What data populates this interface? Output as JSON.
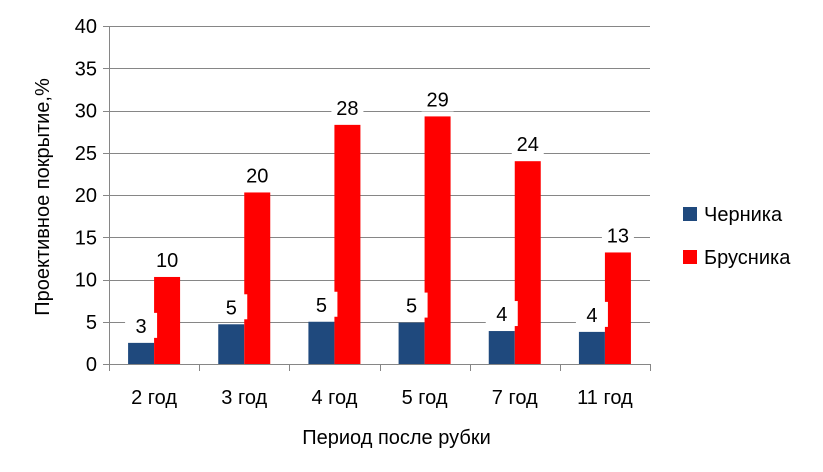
{
  "chart_data": {
    "type": "bar",
    "title": "",
    "xlabel": "Период после рубки",
    "ylabel": "Проективное покрытие,%",
    "ylim": [
      0,
      40
    ],
    "yticks": [
      "0",
      "5",
      "10",
      "15",
      "20",
      "25",
      "30",
      "35",
      "40"
    ],
    "categories": [
      "2 год",
      "3 год",
      "4 год",
      "5 год",
      "7 год",
      "11 год"
    ],
    "grid": true,
    "legend_position": "right",
    "series": [
      {
        "name": "Черника",
        "color": "#1F497D",
        "values": [
          2.5,
          4.7,
          5.0,
          4.9,
          3.9,
          3.8
        ],
        "labels": [
          "3",
          "5",
          "5",
          "5",
          "4",
          "4"
        ]
      },
      {
        "name": "Брусника",
        "color": "#FF0000",
        "values": [
          10.3,
          20.3,
          28.3,
          29.3,
          24.0,
          13.2
        ],
        "labels": [
          "10",
          "20",
          "28",
          "29",
          "24",
          "13"
        ]
      }
    ]
  }
}
